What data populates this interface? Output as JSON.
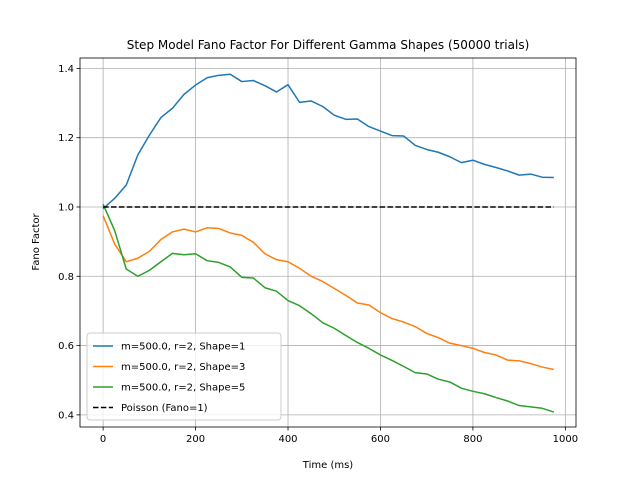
{
  "chart_data": {
    "type": "line",
    "title": "Step Model Fano Factor For Different Gamma Shapes (50000 trials)",
    "xlabel": "Time (ms)",
    "ylabel": "Fano Factor",
    "xlim": [
      -50,
      1023
    ],
    "ylim": [
      0.365,
      1.43
    ],
    "xticks": [
      0,
      200,
      400,
      600,
      800,
      1000
    ],
    "yticks": [
      0.4,
      0.6,
      0.8,
      1.0,
      1.2,
      1.4
    ],
    "xtick_labels": [
      "0",
      "200",
      "400",
      "600",
      "800",
      "1000"
    ],
    "ytick_labels": [
      "0.4",
      "0.6",
      "0.8",
      "1.0",
      "1.2",
      "1.4"
    ],
    "grid": true,
    "legend_position": "lower-left",
    "x": [
      0,
      25,
      50,
      75,
      100,
      125,
      150,
      175,
      200,
      225,
      250,
      275,
      300,
      325,
      350,
      375,
      400,
      425,
      450,
      475,
      500,
      525,
      550,
      575,
      600,
      625,
      650,
      675,
      700,
      725,
      750,
      775,
      800,
      825,
      850,
      875,
      900,
      925,
      950,
      975
    ],
    "series": [
      {
        "name": "m=500.0, r=2, Shape=1",
        "color": "#1f77b4",
        "style": "solid",
        "values": [
          0.995,
          1.025,
          1.063,
          1.15,
          1.207,
          1.258,
          1.285,
          1.325,
          1.352,
          1.373,
          1.38,
          1.383,
          1.362,
          1.365,
          1.35,
          1.332,
          1.353,
          1.302,
          1.306,
          1.29,
          1.265,
          1.253,
          1.254,
          1.232,
          1.219,
          1.206,
          1.205,
          1.178,
          1.166,
          1.158,
          1.145,
          1.128,
          1.135,
          1.123,
          1.114,
          1.104,
          1.092,
          1.095,
          1.086,
          1.085
        ]
      },
      {
        "name": "m=500.0, r=2, Shape=3",
        "color": "#ff7f0e",
        "style": "solid",
        "values": [
          0.975,
          0.893,
          0.842,
          0.852,
          0.872,
          0.906,
          0.928,
          0.936,
          0.928,
          0.94,
          0.938,
          0.925,
          0.918,
          0.898,
          0.865,
          0.848,
          0.842,
          0.823,
          0.8,
          0.785,
          0.765,
          0.745,
          0.723,
          0.717,
          0.695,
          0.678,
          0.668,
          0.655,
          0.635,
          0.623,
          0.607,
          0.6,
          0.592,
          0.58,
          0.573,
          0.558,
          0.556,
          0.548,
          0.538,
          0.531
        ]
      },
      {
        "name": "m=500.0, r=2, Shape=5",
        "color": "#2ca02c",
        "style": "solid",
        "values": [
          1.008,
          0.932,
          0.821,
          0.8,
          0.817,
          0.842,
          0.866,
          0.862,
          0.865,
          0.845,
          0.84,
          0.827,
          0.797,
          0.795,
          0.767,
          0.757,
          0.73,
          0.715,
          0.692,
          0.666,
          0.65,
          0.629,
          0.609,
          0.592,
          0.573,
          0.557,
          0.54,
          0.522,
          0.518,
          0.503,
          0.495,
          0.477,
          0.468,
          0.461,
          0.45,
          0.44,
          0.427,
          0.423,
          0.419,
          0.408
        ]
      },
      {
        "name": "Poisson (Fano=1)",
        "color": "#000000",
        "style": "dashed",
        "values": [
          1.0,
          1.0,
          1.0,
          1.0,
          1.0,
          1.0,
          1.0,
          1.0,
          1.0,
          1.0,
          1.0,
          1.0,
          1.0,
          1.0,
          1.0,
          1.0,
          1.0,
          1.0,
          1.0,
          1.0,
          1.0,
          1.0,
          1.0,
          1.0,
          1.0,
          1.0,
          1.0,
          1.0,
          1.0,
          1.0,
          1.0,
          1.0,
          1.0,
          1.0,
          1.0,
          1.0,
          1.0,
          1.0,
          1.0,
          1.0
        ]
      }
    ]
  }
}
